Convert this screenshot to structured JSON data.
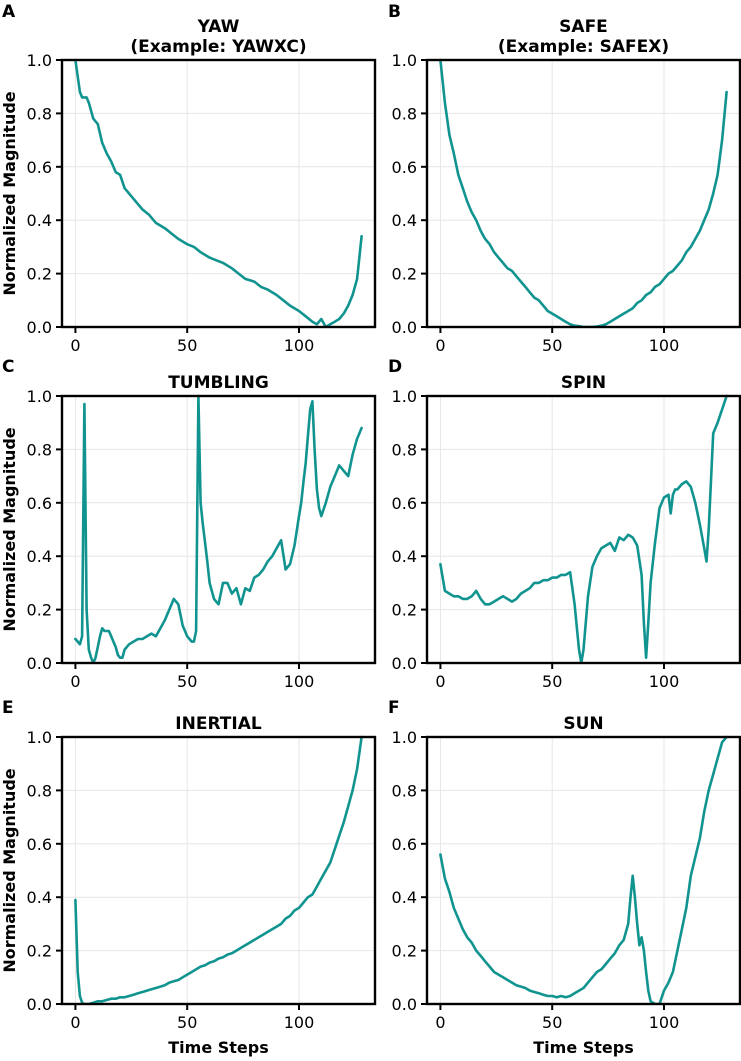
{
  "figure": {
    "line_color": "#119490",
    "grid_color": "#e6e6e6"
  },
  "chart_data": [
    {
      "type": "line",
      "panel": "A",
      "title_lines": [
        "YAW",
        "(Example: YAWXC)"
      ],
      "xlabel": "",
      "ylabel": "Normalized Magnitude",
      "xlim": [
        -6,
        134
      ],
      "ylim": [
        0,
        1
      ],
      "xticks": [
        0,
        50,
        100
      ],
      "yticks": [
        0.0,
        0.2,
        0.4,
        0.6,
        0.8,
        1.0
      ],
      "series": [
        {
          "name": "YAW",
          "x": [
            0,
            2,
            3,
            5,
            6,
            8,
            10,
            12,
            14,
            16,
            18,
            20,
            22,
            25,
            28,
            30,
            33,
            36,
            40,
            43,
            46,
            50,
            53,
            56,
            60,
            63,
            66,
            70,
            73,
            76,
            80,
            83,
            86,
            90,
            93,
            96,
            100,
            103,
            106,
            108,
            110,
            112,
            114,
            116,
            118,
            120,
            122,
            124,
            126,
            128
          ],
          "y": [
            1.0,
            0.88,
            0.86,
            0.86,
            0.84,
            0.78,
            0.76,
            0.69,
            0.65,
            0.62,
            0.58,
            0.57,
            0.52,
            0.49,
            0.46,
            0.44,
            0.42,
            0.39,
            0.37,
            0.35,
            0.33,
            0.31,
            0.3,
            0.28,
            0.26,
            0.25,
            0.24,
            0.22,
            0.2,
            0.18,
            0.17,
            0.15,
            0.14,
            0.12,
            0.1,
            0.08,
            0.06,
            0.04,
            0.02,
            0.01,
            0.03,
            0.0,
            0.01,
            0.02,
            0.03,
            0.05,
            0.08,
            0.12,
            0.18,
            0.34
          ]
        }
      ]
    },
    {
      "type": "line",
      "panel": "B",
      "title_lines": [
        "SAFE",
        "(Example: SAFEX)"
      ],
      "xlabel": "",
      "ylabel": "",
      "xlim": [
        -6,
        134
      ],
      "ylim": [
        0,
        1
      ],
      "xticks": [
        0,
        50,
        100
      ],
      "yticks": [
        0.0,
        0.2,
        0.4,
        0.6,
        0.8,
        1.0
      ],
      "series": [
        {
          "name": "SAFE",
          "x": [
            0,
            2,
            4,
            6,
            8,
            10,
            12,
            14,
            16,
            18,
            20,
            22,
            24,
            26,
            28,
            30,
            32,
            34,
            36,
            38,
            40,
            42,
            44,
            46,
            48,
            50,
            52,
            54,
            56,
            58,
            60,
            62,
            64,
            66,
            68,
            70,
            72,
            74,
            76,
            78,
            80,
            82,
            84,
            86,
            88,
            90,
            92,
            94,
            96,
            98,
            100,
            102,
            104,
            106,
            108,
            110,
            112,
            114,
            116,
            118,
            120,
            122,
            124,
            126,
            128
          ],
          "y": [
            1.0,
            0.84,
            0.72,
            0.65,
            0.57,
            0.52,
            0.47,
            0.43,
            0.4,
            0.36,
            0.33,
            0.31,
            0.28,
            0.26,
            0.24,
            0.22,
            0.21,
            0.19,
            0.17,
            0.15,
            0.13,
            0.11,
            0.1,
            0.08,
            0.06,
            0.05,
            0.04,
            0.03,
            0.02,
            0.01,
            0.005,
            0.003,
            0.0,
            0.0,
            0.0,
            0.002,
            0.005,
            0.01,
            0.02,
            0.03,
            0.04,
            0.05,
            0.06,
            0.07,
            0.09,
            0.1,
            0.12,
            0.13,
            0.15,
            0.16,
            0.18,
            0.2,
            0.21,
            0.23,
            0.25,
            0.28,
            0.3,
            0.33,
            0.36,
            0.4,
            0.44,
            0.5,
            0.57,
            0.7,
            0.88
          ]
        }
      ]
    },
    {
      "type": "line",
      "panel": "C",
      "title_lines": [
        "TUMBLING"
      ],
      "xlabel": "",
      "ylabel": "Normalized Magnitude",
      "xlim": [
        -6,
        134
      ],
      "ylim": [
        0,
        1
      ],
      "xticks": [
        0,
        50,
        100
      ],
      "yticks": [
        0.0,
        0.2,
        0.4,
        0.6,
        0.8,
        1.0
      ],
      "series": [
        {
          "name": "TUMBLING",
          "x": [
            0,
            1,
            2,
            3,
            4,
            5,
            6,
            7,
            8,
            9,
            10,
            11,
            12,
            13,
            14,
            15,
            16,
            17,
            18,
            19,
            20,
            21,
            22,
            24,
            26,
            28,
            30,
            32,
            34,
            36,
            38,
            40,
            42,
            44,
            46,
            48,
            50,
            52,
            53,
            54,
            55,
            56,
            57,
            58,
            59,
            60,
            62,
            64,
            66,
            68,
            70,
            72,
            74,
            76,
            78,
            80,
            82,
            84,
            86,
            88,
            90,
            92,
            94,
            96,
            98,
            100,
            101,
            102,
            103,
            104,
            105,
            106,
            107,
            108,
            109,
            110,
            112,
            114,
            116,
            118,
            120,
            122,
            124,
            126,
            128
          ],
          "y": [
            0.09,
            0.08,
            0.07,
            0.1,
            0.97,
            0.2,
            0.05,
            0.02,
            0.0,
            0.02,
            0.06,
            0.1,
            0.13,
            0.12,
            0.12,
            0.12,
            0.1,
            0.08,
            0.06,
            0.03,
            0.02,
            0.02,
            0.05,
            0.07,
            0.08,
            0.09,
            0.09,
            0.1,
            0.11,
            0.1,
            0.13,
            0.16,
            0.2,
            0.24,
            0.22,
            0.14,
            0.1,
            0.08,
            0.08,
            0.12,
            1.0,
            0.6,
            0.52,
            0.45,
            0.38,
            0.3,
            0.24,
            0.22,
            0.3,
            0.3,
            0.26,
            0.28,
            0.22,
            0.28,
            0.27,
            0.32,
            0.33,
            0.35,
            0.38,
            0.4,
            0.43,
            0.46,
            0.35,
            0.37,
            0.44,
            0.55,
            0.6,
            0.68,
            0.75,
            0.85,
            0.95,
            0.98,
            0.8,
            0.65,
            0.58,
            0.55,
            0.6,
            0.66,
            0.7,
            0.74,
            0.72,
            0.7,
            0.78,
            0.84,
            0.88
          ]
        }
      ]
    },
    {
      "type": "line",
      "panel": "D",
      "title_lines": [
        "SPIN"
      ],
      "xlabel": "",
      "ylabel": "",
      "xlim": [
        -6,
        134
      ],
      "ylim": [
        0,
        1
      ],
      "xticks": [
        0,
        50,
        100
      ],
      "yticks": [
        0.0,
        0.2,
        0.4,
        0.6,
        0.8,
        1.0
      ],
      "series": [
        {
          "name": "SPIN",
          "x": [
            0,
            2,
            4,
            6,
            8,
            10,
            12,
            14,
            16,
            18,
            20,
            22,
            24,
            26,
            28,
            30,
            32,
            34,
            36,
            38,
            40,
            42,
            44,
            46,
            48,
            50,
            52,
            54,
            56,
            58,
            60,
            62,
            63,
            64,
            66,
            68,
            70,
            72,
            74,
            76,
            78,
            80,
            82,
            84,
            86,
            88,
            90,
            91,
            92,
            93,
            94,
            96,
            98,
            100,
            102,
            103,
            104,
            105,
            106,
            108,
            110,
            112,
            114,
            116,
            118,
            119,
            120,
            122,
            124,
            126,
            128
          ],
          "y": [
            0.37,
            0.27,
            0.26,
            0.25,
            0.25,
            0.24,
            0.24,
            0.25,
            0.27,
            0.24,
            0.22,
            0.22,
            0.23,
            0.24,
            0.25,
            0.24,
            0.23,
            0.24,
            0.26,
            0.27,
            0.28,
            0.3,
            0.3,
            0.31,
            0.31,
            0.32,
            0.32,
            0.33,
            0.33,
            0.34,
            0.22,
            0.05,
            0.0,
            0.05,
            0.25,
            0.36,
            0.4,
            0.43,
            0.44,
            0.45,
            0.42,
            0.47,
            0.46,
            0.48,
            0.47,
            0.44,
            0.33,
            0.15,
            0.02,
            0.15,
            0.3,
            0.45,
            0.58,
            0.62,
            0.63,
            0.56,
            0.63,
            0.65,
            0.65,
            0.67,
            0.68,
            0.66,
            0.6,
            0.52,
            0.43,
            0.38,
            0.5,
            0.86,
            0.9,
            0.95,
            1.0
          ]
        }
      ]
    },
    {
      "type": "line",
      "panel": "E",
      "title_lines": [
        "INERTIAL"
      ],
      "xlabel": "Time Steps",
      "ylabel": "Normalized Magnitude",
      "xlim": [
        -6,
        134
      ],
      "ylim": [
        0,
        1
      ],
      "xticks": [
        0,
        50,
        100
      ],
      "yticks": [
        0.0,
        0.2,
        0.4,
        0.6,
        0.8,
        1.0
      ],
      "series": [
        {
          "name": "INERTIAL",
          "x": [
            0,
            1,
            2,
            3,
            4,
            6,
            8,
            10,
            12,
            14,
            16,
            18,
            20,
            22,
            24,
            26,
            28,
            30,
            32,
            34,
            36,
            38,
            40,
            42,
            44,
            46,
            48,
            50,
            52,
            54,
            56,
            58,
            60,
            62,
            64,
            66,
            68,
            70,
            72,
            74,
            76,
            78,
            80,
            82,
            84,
            86,
            88,
            90,
            92,
            94,
            96,
            98,
            100,
            102,
            104,
            106,
            108,
            110,
            112,
            114,
            116,
            118,
            120,
            122,
            124,
            126,
            128
          ],
          "y": [
            0.39,
            0.12,
            0.03,
            0.005,
            0.0,
            0.0,
            0.005,
            0.01,
            0.01,
            0.015,
            0.02,
            0.02,
            0.025,
            0.025,
            0.03,
            0.035,
            0.04,
            0.045,
            0.05,
            0.055,
            0.06,
            0.065,
            0.07,
            0.08,
            0.085,
            0.09,
            0.1,
            0.11,
            0.12,
            0.13,
            0.14,
            0.145,
            0.155,
            0.16,
            0.17,
            0.175,
            0.185,
            0.19,
            0.2,
            0.21,
            0.22,
            0.23,
            0.24,
            0.25,
            0.26,
            0.27,
            0.28,
            0.29,
            0.3,
            0.32,
            0.33,
            0.35,
            0.36,
            0.38,
            0.4,
            0.41,
            0.44,
            0.47,
            0.5,
            0.53,
            0.58,
            0.63,
            0.68,
            0.74,
            0.8,
            0.88,
            1.0
          ]
        }
      ]
    },
    {
      "type": "line",
      "panel": "F",
      "title_lines": [
        "SUN"
      ],
      "xlabel": "Time Steps",
      "ylabel": "",
      "xlim": [
        -6,
        134
      ],
      "ylim": [
        0,
        1
      ],
      "xticks": [
        0,
        50,
        100
      ],
      "yticks": [
        0.0,
        0.2,
        0.4,
        0.6,
        0.8,
        1.0
      ],
      "series": [
        {
          "name": "SUN",
          "x": [
            0,
            2,
            4,
            6,
            8,
            10,
            12,
            14,
            16,
            18,
            20,
            22,
            24,
            26,
            28,
            30,
            32,
            34,
            36,
            38,
            40,
            42,
            44,
            46,
            48,
            50,
            52,
            54,
            56,
            58,
            60,
            62,
            64,
            66,
            68,
            70,
            72,
            74,
            76,
            78,
            80,
            82,
            84,
            85,
            86,
            87,
            88,
            89,
            90,
            91,
            92,
            93,
            94,
            96,
            98,
            100,
            102,
            104,
            106,
            108,
            110,
            112,
            114,
            116,
            118,
            120,
            122,
            124,
            126,
            128
          ],
          "y": [
            0.56,
            0.47,
            0.42,
            0.36,
            0.32,
            0.28,
            0.25,
            0.23,
            0.2,
            0.18,
            0.16,
            0.14,
            0.12,
            0.11,
            0.1,
            0.09,
            0.08,
            0.07,
            0.065,
            0.06,
            0.05,
            0.045,
            0.04,
            0.035,
            0.03,
            0.03,
            0.025,
            0.03,
            0.025,
            0.03,
            0.04,
            0.05,
            0.06,
            0.08,
            0.1,
            0.12,
            0.13,
            0.15,
            0.17,
            0.19,
            0.22,
            0.24,
            0.3,
            0.4,
            0.48,
            0.4,
            0.3,
            0.22,
            0.25,
            0.2,
            0.12,
            0.05,
            0.01,
            0.0,
            0.0,
            0.05,
            0.08,
            0.12,
            0.2,
            0.28,
            0.36,
            0.48,
            0.55,
            0.62,
            0.72,
            0.8,
            0.86,
            0.92,
            0.98,
            1.0
          ]
        }
      ]
    }
  ]
}
